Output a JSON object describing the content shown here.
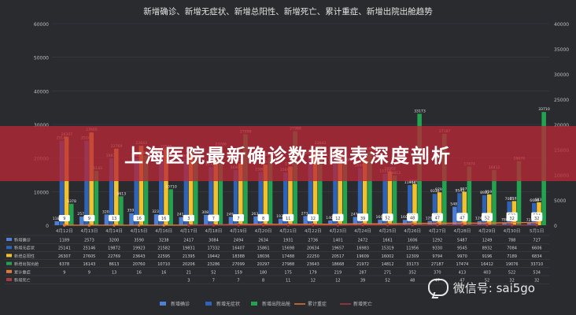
{
  "banner": {
    "text": "上海医院最新确诊数据图表深度剖析"
  },
  "watermark": {
    "text": "微信号: sai5go",
    "icon": "wechat-icon"
  },
  "colors": {
    "bg": "#2a2b2f",
    "xinzeng_quezhen": "#4e7fd6",
    "xinzeng_wuzhengzhuang": "#2e63b8",
    "xinzeng_zongyangxing": "#f2c12e",
    "xinzeng_chuyuan": "#23a24f",
    "leiji_zhongzheng": "#e07b39",
    "xinzeng_siwang": "#a83a44",
    "grid": "#3c3d42",
    "text": "#bdbdbd"
  },
  "chart_data": {
    "type": "bar",
    "title": "新增确诊、新增无症状、新增总阳性、新增死亡、累计重症、新增出院出舱趋势",
    "categories": [
      "4月12日",
      "4月13日",
      "4月14日",
      "4月15日",
      "4月16日",
      "4月17日",
      "4月18日",
      "4月19日",
      "4月20日",
      "4月21日",
      "4月22日",
      "4月23日",
      "4月24日",
      "4月25日",
      "4月26日",
      "4月27日",
      "4月28日",
      "4月29日",
      "4月30日",
      "5月1日"
    ],
    "y_left": {
      "min": 0,
      "max": 60000,
      "ticks": [
        0,
        10000,
        20000,
        30000,
        40000,
        50000,
        60000
      ]
    },
    "y_right": {
      "min": 0,
      "max": 40000,
      "ticks": [
        0,
        5000,
        10000,
        15000,
        20000,
        25000,
        30000,
        35000,
        40000
      ]
    },
    "series": [
      {
        "name": "新增确诊",
        "type": "bar",
        "axis": "left",
        "values": [
          1189,
          2573,
          3200,
          3590,
          3238,
          2417,
          3084,
          2494,
          2634,
          1931,
          2736,
          1401,
          2472,
          1661,
          1606,
          1292,
          5487,
          1249,
          788,
          727
        ]
      },
      {
        "name": "新增无症状",
        "type": "bar",
        "axis": "left",
        "values": [
          25141,
          25146,
          19872,
          19923,
          21582,
          19831,
          17332,
          16407,
          15861,
          15698,
          20634,
          19657,
          16983,
          15319,
          11956,
          9330,
          9545,
          8932,
          7084,
          6606
        ]
      },
      {
        "name": "新增总阳性",
        "type": "bar",
        "axis": "left",
        "values": [
          26307,
          27605,
          22769,
          23643,
          22595,
          21395,
          19442,
          18388,
          18036,
          17488,
          22250,
          20517,
          19609,
          16002,
          12309,
          9794,
          9970,
          9196,
          7189,
          6834
        ]
      },
      {
        "name": "新增出院出舱",
        "type": "bar",
        "axis": "left",
        "values": [
          6378,
          16143,
          8613,
          20760,
          10710,
          20206,
          23286,
          27099,
          20297,
          27988,
          23643,
          18668,
          21972,
          14812,
          33173,
          27187,
          17474,
          16412,
          19076,
          33710
        ]
      },
      {
        "name": "累计重症",
        "type": "line",
        "axis": "right",
        "values": [
          9,
          9,
          13,
          16,
          16,
          21,
          52,
          159,
          180,
          175,
          179,
          219,
          287,
          271,
          352,
          370,
          413,
          403,
          522,
          534
        ]
      },
      {
        "name": "新增死亡",
        "type": "line",
        "axis": "right",
        "values": [
          null,
          null,
          null,
          null,
          null,
          3,
          7,
          7,
          8,
          11,
          12,
          12,
          39,
          52,
          48,
          47,
          47,
          52,
          32,
          32
        ]
      }
    ],
    "bar_labels": {
      "新增确诊": [
        "1189",
        "2573",
        "3200",
        "3590",
        "3238",
        "2417",
        "3084",
        "2494",
        "2634",
        "1931",
        "2736",
        "1401",
        "2472",
        "1661",
        "1606",
        "1292",
        "5487",
        "1249",
        "788",
        "727"
      ],
      "新增无症状": [
        "25141",
        "25146",
        "19872",
        "19923",
        "21582",
        "19831",
        "17332",
        "16407",
        "15861",
        "15698",
        "20634",
        "19657",
        "16983",
        "15319",
        "11956",
        "9330",
        "9545",
        "8932",
        "7084",
        "6606"
      ],
      "新增总阳性": [
        "26307",
        "27605",
        "22769",
        "23643",
        "22595",
        "21395",
        "19442",
        "18388",
        "18036",
        "17488",
        "22250",
        "20517",
        "19609",
        "16002",
        "12309",
        "9794",
        "9970",
        "9196",
        "7189",
        "6834"
      ],
      "新增出院出舱": [
        "6378",
        "16143",
        "8613",
        "20760",
        "10710",
        "20206",
        "23286",
        "27099",
        "20297",
        "27988",
        "23643",
        "18668",
        "21972",
        "14812",
        "33173",
        "27187",
        "17474",
        "16412",
        "19076",
        "33710"
      ]
    },
    "line_labels": {
      "累计重症": [
        "9",
        "9",
        "13",
        "16",
        "16",
        "21",
        "52",
        "159",
        "180",
        "175",
        "179",
        "219",
        "287",
        "271",
        "352",
        "370",
        "413",
        "403",
        "522",
        "534"
      ],
      "新增死亡": [
        "",
        "",
        "",
        "",
        "",
        "3",
        "7",
        "7",
        "8",
        "11",
        "12",
        "12",
        "39",
        "52",
        "48",
        "47",
        "47",
        "52",
        "32",
        "32"
      ]
    },
    "table": {
      "rows": [
        {
          "name": "新增确诊",
          "values": [
            "1189",
            "2573",
            "3200",
            "3590",
            "3238",
            "2417",
            "3084",
            "2494",
            "2634",
            "1931",
            "2736",
            "1401",
            "2472",
            "1661",
            "1606",
            "1292",
            "5487",
            "1249",
            "788",
            "727"
          ]
        },
        {
          "name": "新增无症状",
          "values": [
            "25141",
            "25146",
            "19872",
            "19923",
            "21582",
            "19831",
            "17332",
            "16407",
            "15861",
            "15698",
            "20634",
            "19657",
            "16983",
            "15319",
            "11956",
            "9330",
            "9545",
            "8932",
            "7084",
            "6606"
          ]
        },
        {
          "name": "新增总阳性",
          "values": [
            "26307",
            "27605",
            "22769",
            "23643",
            "22595",
            "21395",
            "19442",
            "18388",
            "18036",
            "17488",
            "22250",
            "20517",
            "19609",
            "16002",
            "12309",
            "9794",
            "9970",
            "9196",
            "7189",
            "6834"
          ]
        },
        {
          "name": "新增出院出舱",
          "values": [
            "6378",
            "16143",
            "8613",
            "20760",
            "10710",
            "20206",
            "23286",
            "27099",
            "20297",
            "27988",
            "23643",
            "18668",
            "21972",
            "14812",
            "33173",
            "27187",
            "17474",
            "16412",
            "19076",
            "33710"
          ]
        },
        {
          "name": "累计重症",
          "values": [
            "9",
            "9",
            "13",
            "16",
            "16",
            "21",
            "52",
            "159",
            "180",
            "175",
            "179",
            "219",
            "287",
            "271",
            "352",
            "370",
            "413",
            "403",
            "522",
            "534"
          ]
        },
        {
          "name": "新增死亡",
          "values": [
            "",
            "",
            "",
            "",
            "",
            "3",
            "7",
            "7",
            "8",
            "11",
            "12",
            "12",
            "39",
            "52",
            "48",
            "47",
            "47",
            "52",
            "32",
            "32"
          ]
        }
      ]
    },
    "legend": [
      "新增确诊",
      "新增无症状",
      "新增出院出舱",
      "累计重症",
      "新增死亡"
    ],
    "legend_position": "bottom",
    "grid": true
  }
}
